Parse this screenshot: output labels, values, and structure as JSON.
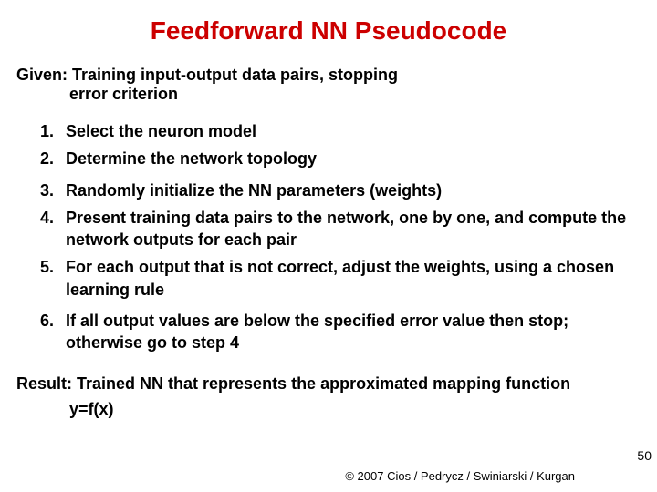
{
  "title": {
    "text": "Feedforward NN Pseudocode",
    "color": "#cc0000",
    "fontsize": 28
  },
  "given": {
    "line1": "Given: Training input-output data pairs, stopping",
    "line2": "error criterion",
    "fontsize": 18,
    "color": "#000000"
  },
  "steps": {
    "fontsize": 18,
    "color": "#000000",
    "items": [
      {
        "num": "1.",
        "text": "Select the neuron model",
        "gap": false
      },
      {
        "num": "2.",
        "text": "Determine the network topology",
        "gap": true
      },
      {
        "num": "3.",
        "text": "Randomly initialize the NN parameters (weights)",
        "gap": false
      },
      {
        "num": "4.",
        "text": "Present training data pairs to the network, one by one, and compute the network outputs for each pair",
        "gap": false
      },
      {
        "num": "5.",
        "text": "For each output that is not correct, adjust the weights, using a chosen learning rule",
        "gap": true
      },
      {
        "num": "6.",
        "text": "If all output values are below the specified error value then stop; otherwise go to step 4",
        "gap": false
      }
    ]
  },
  "result": {
    "line1": "Result: Trained NN that represents the approximated mapping function",
    "line2": "y=f(x)",
    "fontsize": 18,
    "color": "#000000"
  },
  "pagenum": {
    "text": "50",
    "fontsize": 14,
    "color": "#000000"
  },
  "copyright": {
    "text": "© 2007 Cios / Pedrycz / Swiniarski / Kurgan",
    "fontsize": 13,
    "color": "#000000"
  }
}
